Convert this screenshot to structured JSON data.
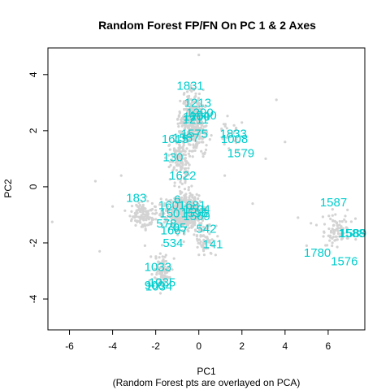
{
  "chart_data": {
    "type": "scatter",
    "title": "Random Forest FP/FN On PC 1 & 2 Axes",
    "xlabel": "PC1",
    "ylabel": "PC2",
    "subtitle": "(Random Forest pts are overlayed on PCA)",
    "xlim": [
      -7.0,
      7.7
    ],
    "ylim": [
      -5.1,
      4.95
    ],
    "xticks": [
      -6,
      -4,
      -2,
      0,
      2,
      4,
      6
    ],
    "yticks": [
      -4,
      -2,
      0,
      2,
      4
    ],
    "background_color": "#d3d3d3",
    "label_color": "#00cdcd",
    "labeled_points": [
      {
        "label": "1831",
        "x": -0.4,
        "y": 3.6
      },
      {
        "label": "1213",
        "x": -0.05,
        "y": 3.0
      },
      {
        "label": "1290",
        "x": 0.05,
        "y": 2.65
      },
      {
        "label": "1200",
        "x": -0.1,
        "y": 2.5
      },
      {
        "label": "1540",
        "x": 0.2,
        "y": 2.55
      },
      {
        "label": "1211",
        "x": -0.15,
        "y": 2.4
      },
      {
        "label": "1575",
        "x": -0.2,
        "y": 1.9
      },
      {
        "label": "1615",
        "x": -1.1,
        "y": 1.7
      },
      {
        "label": "1587",
        "x": -0.6,
        "y": 1.75
      },
      {
        "label": "1833",
        "x": 1.6,
        "y": 1.9
      },
      {
        "label": "1008",
        "x": 1.65,
        "y": 1.7
      },
      {
        "label": "1579",
        "x": 1.95,
        "y": 1.2
      },
      {
        "label": "130",
        "x": -1.2,
        "y": 1.05
      },
      {
        "label": "1622",
        "x": -0.75,
        "y": 0.4
      },
      {
        "label": "183",
        "x": -2.9,
        "y": -0.4
      },
      {
        "label": "6",
        "x": -1.0,
        "y": -0.45
      },
      {
        "label": "1601",
        "x": -1.25,
        "y": -0.65
      },
      {
        "label": "1681",
        "x": -0.3,
        "y": -0.65
      },
      {
        "label": "1504",
        "x": -0.1,
        "y": -0.8
      },
      {
        "label": "150",
        "x": -1.35,
        "y": -0.95
      },
      {
        "label": "1596",
        "x": -0.2,
        "y": -0.95
      },
      {
        "label": "1569",
        "x": -0.1,
        "y": -1.05
      },
      {
        "label": "578",
        "x": -1.5,
        "y": -1.3
      },
      {
        "label": "705",
        "x": -1.05,
        "y": -1.45
      },
      {
        "label": "1667",
        "x": -1.15,
        "y": -1.55
      },
      {
        "label": "542",
        "x": 0.35,
        "y": -1.5
      },
      {
        "label": "534",
        "x": -1.2,
        "y": -2.0
      },
      {
        "label": "141",
        "x": 0.65,
        "y": -2.05
      },
      {
        "label": "1033",
        "x": -1.9,
        "y": -2.85
      },
      {
        "label": "1035",
        "x": -1.7,
        "y": -3.4
      },
      {
        "label": "900",
        "x": -2.05,
        "y": -3.5
      },
      {
        "label": "1034",
        "x": -1.85,
        "y": -3.55
      },
      {
        "label": "1587",
        "x": 6.25,
        "y": -0.55
      },
      {
        "label": "1588",
        "x": 7.1,
        "y": -1.65
      },
      {
        "label": "1589",
        "x": 7.15,
        "y": -1.65
      },
      {
        "label": "1780",
        "x": 5.5,
        "y": -2.35
      },
      {
        "label": "1576",
        "x": 6.75,
        "y": -2.65
      }
    ]
  }
}
